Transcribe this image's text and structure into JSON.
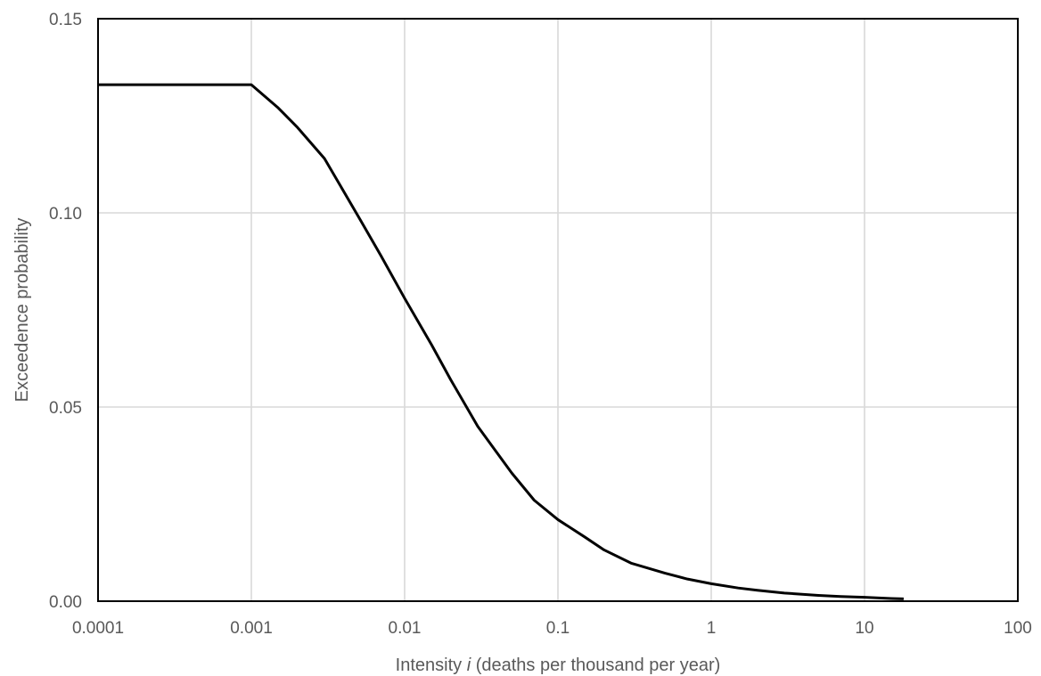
{
  "chart_data": {
    "type": "line",
    "title": "",
    "xlabel": {
      "prefix": "Intensity ",
      "italic": "i",
      "suffix": " (deaths per thousand per year)"
    },
    "ylabel": "Exceedence probability",
    "x_scale": "log",
    "xlim": [
      0.0001,
      100
    ],
    "ylim": [
      0,
      0.15
    ],
    "x_ticks": [
      0.0001,
      0.001,
      0.01,
      0.1,
      1,
      10,
      100
    ],
    "x_tick_labels": [
      "0.0001",
      "0.001",
      "0.01",
      "0.1",
      "1",
      "10",
      "100"
    ],
    "y_ticks": [
      0,
      0.05,
      0.1,
      0.15
    ],
    "y_tick_labels": [
      "0.00",
      "0.05",
      "0.10",
      "0.15"
    ],
    "grid": true,
    "legend": "none",
    "series": [
      {
        "color": "#000000",
        "x": [
          0.0001,
          0.001,
          0.0015,
          0.002,
          0.003,
          0.005,
          0.007,
          0.01,
          0.015,
          0.02,
          0.03,
          0.05,
          0.07,
          0.1,
          0.15,
          0.2,
          0.3,
          0.5,
          0.7,
          1,
          1.5,
          2,
          3,
          5,
          7,
          10,
          15,
          18
        ],
        "y": [
          0.133,
          0.133,
          0.127,
          0.122,
          0.114,
          0.099,
          0.089,
          0.078,
          0.066,
          0.057,
          0.045,
          0.033,
          0.026,
          0.021,
          0.0165,
          0.0132,
          0.0098,
          0.0072,
          0.0057,
          0.0045,
          0.0034,
          0.0028,
          0.0021,
          0.0015,
          0.0012,
          0.001,
          0.0007,
          0.0006
        ]
      }
    ]
  }
}
